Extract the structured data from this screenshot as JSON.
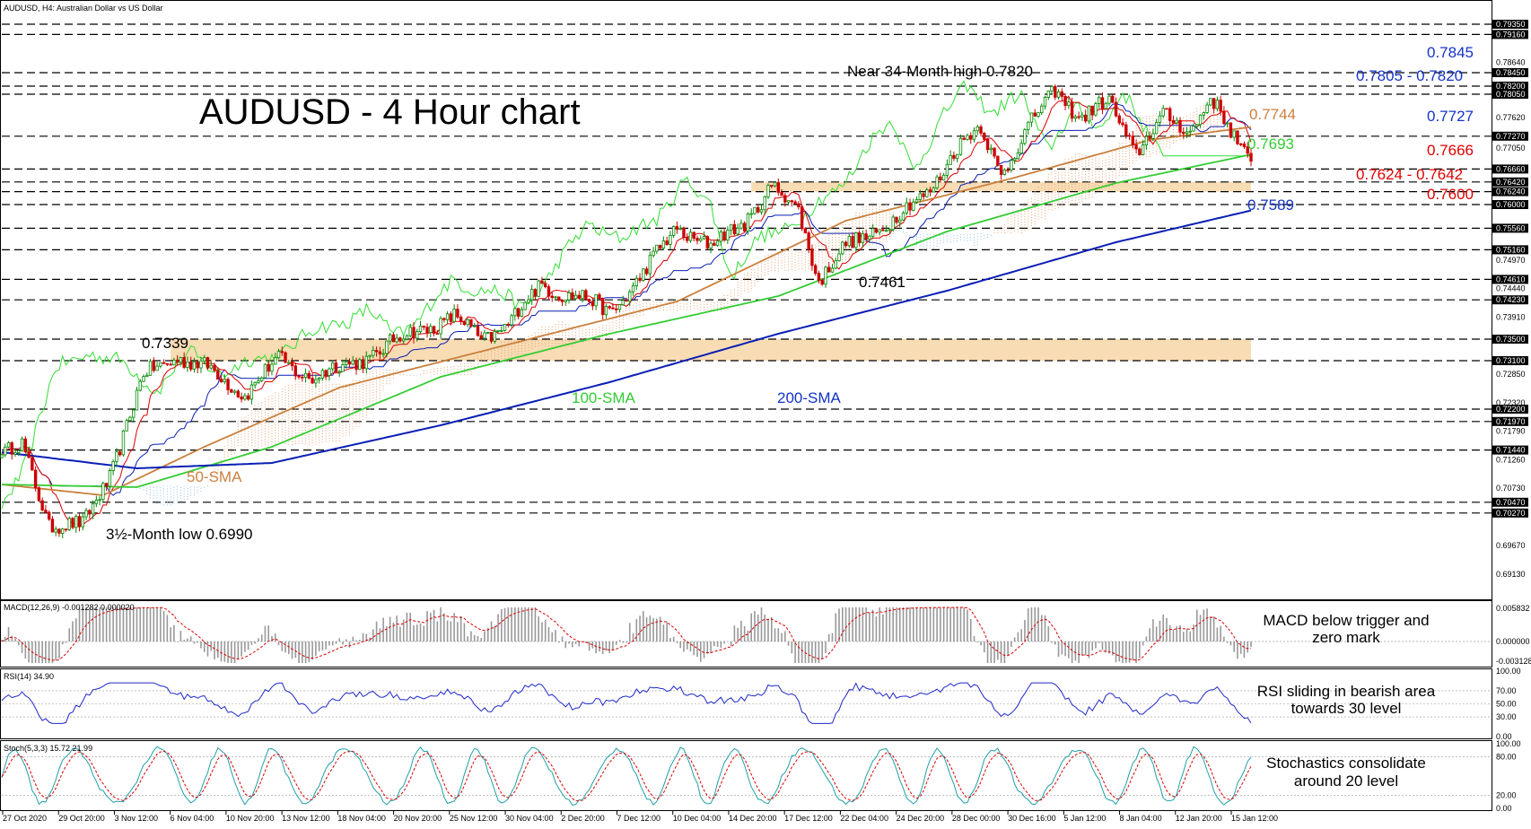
{
  "header": {
    "symbol_info": "AUDUSD, H4:  Australian Dollar vs US Dollar"
  },
  "chart_data": {
    "type": "candlestick",
    "title": "AUDUSD - 4 Hour chart",
    "ylim": [
      0.688,
      0.795
    ],
    "price_axis_ticks": [
      "0.79350",
      "0.79160",
      "0.78640",
      "0.78450",
      "0.78200",
      "0.78050",
      "0.77620",
      "0.77270",
      "0.77050",
      "0.76660",
      "0.76420",
      "0.76240",
      "0.76000",
      "0.75560",
      "0.75160",
      "0.74970",
      "0.74610",
      "0.74440",
      "0.74230",
      "0.73910",
      "0.73500",
      "0.73100",
      "0.72850",
      "0.72320",
      "0.72200",
      "0.71970",
      "0.71790",
      "0.71440",
      "0.71260",
      "0.70730",
      "0.70470",
      "0.70270",
      "0.69670",
      "0.69130"
    ],
    "highlight_ticks": [
      "0.79350",
      "0.79160",
      "0.78450",
      "0.78200",
      "0.78050",
      "0.77270",
      "0.76660",
      "0.76420",
      "0.76240",
      "0.76000",
      "0.75560",
      "0.75160",
      "0.74610",
      "0.74230",
      "0.73500",
      "0.73100",
      "0.72200",
      "0.71970",
      "0.71440",
      "0.70470",
      "0.70270"
    ],
    "levels": [
      0.7935,
      0.7916,
      0.7845,
      0.782,
      0.7805,
      0.7727,
      0.7666,
      0.7642,
      0.7624,
      0.76,
      0.7556,
      0.7516,
      0.7461,
      0.7423,
      0.735,
      0.731,
      0.722,
      0.7197,
      0.7144,
      0.7047,
      0.7027
    ],
    "zones": [
      {
        "from": 0.7624,
        "to": 0.7642
      },
      {
        "from": 0.731,
        "to": 0.735
      }
    ],
    "x_labels": [
      "27 Oct 2020",
      "29 Oct 20:00",
      "3 Nov 12:00",
      "6 Nov 04:00",
      "10 Nov 20:00",
      "13 Nov 12:00",
      "18 Nov 04:00",
      "20 Nov 20:00",
      "25 Nov 12:00",
      "30 Nov 04:00",
      "2 Dec 20:00",
      "7 Dec 12:00",
      "10 Dec 04:00",
      "14 Dec 20:00",
      "17 Dec 12:00",
      "22 Dec 04:00",
      "24 Dec 20:00",
      "28 Dec 00:00",
      "30 Dec 16:00",
      "5 Jan 12:00",
      "8 Jan 04:00",
      "12 Jan 20:00",
      "15 Jan 12:00"
    ],
    "path_keypoints": [
      {
        "i": 0,
        "p": 0.7135
      },
      {
        "i": 6,
        "p": 0.715
      },
      {
        "i": 14,
        "p": 0.701
      },
      {
        "i": 24,
        "p": 0.7
      },
      {
        "i": 32,
        "p": 0.71
      },
      {
        "i": 42,
        "p": 0.728
      },
      {
        "i": 52,
        "p": 0.732
      },
      {
        "i": 62,
        "p": 0.729
      },
      {
        "i": 72,
        "p": 0.725
      },
      {
        "i": 82,
        "p": 0.731
      },
      {
        "i": 92,
        "p": 0.728
      },
      {
        "i": 102,
        "p": 0.73
      },
      {
        "i": 112,
        "p": 0.733
      },
      {
        "i": 124,
        "p": 0.737
      },
      {
        "i": 134,
        "p": 0.739
      },
      {
        "i": 142,
        "p": 0.735
      },
      {
        "i": 150,
        "p": 0.738
      },
      {
        "i": 160,
        "p": 0.745
      },
      {
        "i": 170,
        "p": 0.743
      },
      {
        "i": 180,
        "p": 0.74
      },
      {
        "i": 190,
        "p": 0.747
      },
      {
        "i": 200,
        "p": 0.756
      },
      {
        "i": 210,
        "p": 0.752
      },
      {
        "i": 220,
        "p": 0.757
      },
      {
        "i": 228,
        "p": 0.763
      },
      {
        "i": 236,
        "p": 0.759
      },
      {
        "i": 242,
        "p": 0.7461
      },
      {
        "i": 250,
        "p": 0.752
      },
      {
        "i": 258,
        "p": 0.755
      },
      {
        "i": 266,
        "p": 0.758
      },
      {
        "i": 274,
        "p": 0.762
      },
      {
        "i": 282,
        "p": 0.77
      },
      {
        "i": 290,
        "p": 0.774
      },
      {
        "i": 296,
        "p": 0.766
      },
      {
        "i": 304,
        "p": 0.774
      },
      {
        "i": 312,
        "p": 0.7815
      },
      {
        "i": 320,
        "p": 0.776
      },
      {
        "i": 328,
        "p": 0.779
      },
      {
        "i": 336,
        "p": 0.77
      },
      {
        "i": 344,
        "p": 0.776
      },
      {
        "i": 352,
        "p": 0.774
      },
      {
        "i": 358,
        "p": 0.78
      },
      {
        "i": 364,
        "p": 0.773
      },
      {
        "i": 370,
        "p": 0.768
      }
    ],
    "sma": [
      {
        "name": "50-SMA",
        "color": "#c9803c",
        "pts": [
          [
            0,
            0.708
          ],
          [
            30,
            0.706
          ],
          [
            60,
            0.715
          ],
          [
            100,
            0.726
          ],
          [
            150,
            0.734
          ],
          [
            200,
            0.742
          ],
          [
            250,
            0.757
          ],
          [
            300,
            0.765
          ],
          [
            340,
            0.772
          ],
          [
            370,
            0.7744
          ]
        ]
      },
      {
        "name": "100-SMA",
        "color": "#33cc33",
        "pts": [
          [
            0,
            0.708
          ],
          [
            40,
            0.7075
          ],
          [
            80,
            0.715
          ],
          [
            130,
            0.728
          ],
          [
            180,
            0.736
          ],
          [
            230,
            0.743
          ],
          [
            280,
            0.755
          ],
          [
            330,
            0.764
          ],
          [
            370,
            0.7693
          ]
        ]
      },
      {
        "name": "200-SMA",
        "color": "#0a1eb4",
        "pts": [
          [
            0,
            0.714
          ],
          [
            40,
            0.711
          ],
          [
            80,
            0.712
          ],
          [
            130,
            0.719
          ],
          [
            180,
            0.727
          ],
          [
            230,
            0.736
          ],
          [
            280,
            0.744
          ],
          [
            330,
            0.753
          ],
          [
            370,
            0.7589
          ]
        ]
      }
    ],
    "annotations": {
      "title": "AUDUSD - 4 Hour chart",
      "peak": "Near 34-Month high 0.7820",
      "low": "3½-Month low 0.6990",
      "h7339": "0.7339",
      "l7461": "0.7461",
      "sma50": "50-SMA",
      "sma100": "100-SMA",
      "sma200": "200-SMA",
      "r7845": "0.7845",
      "r7805": "0.7805 - 0.7820",
      "r7744": "0.7744",
      "r7727": "0.7727",
      "r7693": "0.7693",
      "r7666": "0.7666",
      "r7624": "0.7624 - 0.7642",
      "r7600": "0.7600",
      "r7589": "0.7589"
    },
    "colors": {
      "bull": "#008800",
      "bear": "#cc0000",
      "zone": "#f8dcb4",
      "tenkan": "#dd0000",
      "kijun": "#0a1eb4",
      "chikou": "#33dd33",
      "cloud_a": "#e8a070",
      "cloud_b": "#8fbde8",
      "blue": "#1432c8",
      "red": "#e00000",
      "green": "#33cc33",
      "orange": "#cc8040"
    }
  },
  "macd": {
    "label": "MACD(12,26,9) -0.001282 0.000020",
    "ticks": [
      "0.005832",
      "0.000000",
      "-0.003128"
    ],
    "note_line1": "MACD below trigger and",
    "note_line2": "zero mark"
  },
  "rsi": {
    "label": "RSI(14) 34.90",
    "ticks": [
      "100.00",
      "70.00",
      "50.00",
      "30.00",
      "0.00"
    ],
    "note_line1": "RSI sliding in bearish area",
    "note_line2": "towards 30 level"
  },
  "stoch": {
    "label": "Stoch(5,3,3) 15.72 21.99",
    "ticks": [
      "100.00",
      "80.00",
      "20.00",
      "0.00"
    ],
    "note_line1": "Stochastics consolidate",
    "note_line2": "around 20 level"
  }
}
